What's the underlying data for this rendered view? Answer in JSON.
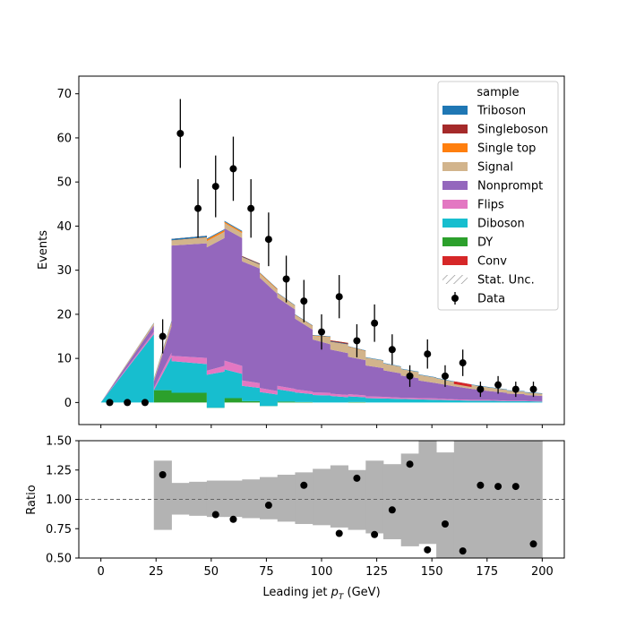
{
  "chart_data": [
    {
      "type": "stacked-area",
      "ylabel": "Events",
      "xlim": [
        -10,
        210
      ],
      "ylim": [
        -5,
        74
      ],
      "yticks": [
        0,
        10,
        20,
        30,
        40,
        50,
        60,
        70
      ],
      "legend": {
        "title": "sample",
        "placement": "top-right",
        "entries": [
          {
            "name": "Triboson",
            "color": "#1f77b4",
            "kind": "patch"
          },
          {
            "name": "Singleboson",
            "color": "#a52a2a",
            "kind": "patch"
          },
          {
            "name": "Single top",
            "color": "#ff7f0e",
            "kind": "patch"
          },
          {
            "name": "Signal",
            "color": "#d2b48c",
            "kind": "patch"
          },
          {
            "name": "Nonprompt",
            "color": "#9467bd",
            "kind": "patch"
          },
          {
            "name": "Flips",
            "color": "#e377c2",
            "kind": "patch"
          },
          {
            "name": "Diboson",
            "color": "#17becf",
            "kind": "patch"
          },
          {
            "name": "DY",
            "color": "#2ca02c",
            "kind": "patch"
          },
          {
            "name": "Conv",
            "color": "#d62728",
            "kind": "patch"
          },
          {
            "name": "Stat. Unc.",
            "color": "#888888",
            "kind": "hatch"
          },
          {
            "name": "Data",
            "color": "#000000",
            "kind": "errorbar"
          }
        ]
      },
      "stack_x": [
        0,
        24,
        24,
        32,
        32,
        48,
        48,
        56,
        56,
        64,
        64,
        72,
        72,
        80,
        80,
        88,
        88,
        96,
        96,
        104,
        104,
        112,
        112,
        120,
        120,
        128,
        128,
        136,
        136,
        144,
        144,
        152,
        152,
        160,
        160,
        168,
        168,
        176,
        176,
        184,
        184,
        192,
        192,
        200
      ],
      "series": [
        {
          "name": "DY",
          "color": "#2ca02c",
          "values": [
            0,
            0,
            2.8,
            2.8,
            2.2,
            2.2,
            -1.2,
            -1.2,
            1.0,
            1.0,
            0.3,
            0.3,
            -0.8,
            -0.8,
            0.2,
            0.2,
            0.1,
            0.1,
            0,
            0,
            0,
            0,
            0.1,
            0.1,
            0,
            0,
            0,
            0,
            0,
            0,
            0,
            0,
            0,
            0,
            0,
            0,
            0,
            0,
            0,
            0,
            0,
            0,
            0,
            0
          ]
        },
        {
          "name": "Diboson",
          "color": "#17becf",
          "values": [
            0,
            15.5,
            0,
            7.5,
            7.2,
            6.5,
            7.5,
            8.2,
            6.5,
            5.5,
            3.5,
            3.0,
            3.2,
            2.6,
            2.8,
            2.2,
            2.2,
            1.8,
            1.7,
            1.6,
            1.5,
            1.2,
            1.3,
            1.1,
            1.0,
            0.9,
            0.9,
            0.8,
            0.8,
            0.7,
            0.7,
            0.6,
            0.6,
            0.5,
            0.5,
            0.4,
            0.4,
            0.4,
            0.4,
            0.3,
            0.3,
            0.3,
            0.3,
            0.2
          ]
        },
        {
          "name": "Flips",
          "color": "#e377c2",
          "values": [
            0,
            0.5,
            0.5,
            1.0,
            1.2,
            1.4,
            0.9,
            1.3,
            2.0,
            1.8,
            1.2,
            1.1,
            0.9,
            0.8,
            0.8,
            0.7,
            0.7,
            0.6,
            0.6,
            0.6,
            0.5,
            0.5,
            0.5,
            0.4,
            0.4,
            0.4,
            0.4,
            0.3,
            0.3,
            0.3,
            0.3,
            0.3,
            0.3,
            0.2,
            0.2,
            0.2,
            0.2,
            0.2,
            0.2,
            0.1,
            0.1,
            0.1,
            0.1,
            0.1
          ]
        },
        {
          "name": "Nonprompt",
          "color": "#9467bd",
          "values": [
            0,
            1.5,
            1.5,
            6.0,
            25,
            26,
            28,
            29,
            30,
            29,
            27,
            26,
            25,
            22,
            20,
            18,
            16,
            14,
            12,
            11,
            10,
            9.5,
            8.5,
            8.0,
            7.0,
            6.5,
            6.0,
            5.5,
            5.0,
            4.5,
            4.0,
            3.5,
            3.5,
            3.0,
            3.0,
            2.5,
            2.5,
            2.0,
            2.0,
            1.8,
            1.6,
            1.5,
            1.3,
            1.2
          ]
        },
        {
          "name": "Signal",
          "color": "#d2b48c",
          "values": [
            0,
            0.4,
            0.4,
            0.8,
            1.2,
            1.3,
            1.4,
            1.4,
            1.2,
            1.1,
            1.0,
            0.9,
            0.9,
            0.9,
            0.9,
            0.8,
            0.8,
            0.8,
            0.8,
            1.6,
            2.0,
            2.2,
            2.2,
            2.0,
            1.8,
            1.7,
            1.6,
            1.5,
            1.5,
            1.4,
            1.3,
            1.2,
            1.1,
            1.0,
            1.0,
            0.9,
            0.9,
            0.8,
            0.8,
            0.7,
            0.7,
            0.6,
            0.6,
            0.5
          ]
        },
        {
          "name": "Single top",
          "color": "#ff7f0e",
          "values": [
            0,
            0.1,
            0.1,
            0.2,
            0.3,
            0.4,
            0.4,
            0.4,
            0.3,
            0.3,
            0.2,
            0.2,
            0.2,
            0.2,
            0.1,
            0.1,
            0.1,
            0.1,
            0.1,
            0.1,
            0.1,
            0.1,
            0.1,
            0.1,
            0,
            0,
            0,
            0,
            0,
            0,
            0,
            0,
            0,
            0,
            0,
            0,
            0,
            0,
            0,
            0,
            0,
            0,
            0,
            0
          ]
        },
        {
          "name": "Singleboson",
          "color": "#a52a2a",
          "values": [
            0,
            0,
            0,
            0,
            -0.3,
            -0.3,
            0,
            0,
            0,
            0,
            -0.2,
            -0.2,
            0,
            0,
            0,
            0,
            0,
            0,
            0,
            0,
            -0.3,
            -0.3,
            0,
            0,
            0,
            0,
            0,
            0,
            0,
            0,
            0,
            0,
            0,
            0,
            0,
            0,
            0,
            0,
            0,
            0,
            0,
            0,
            0,
            0
          ]
        },
        {
          "name": "Triboson",
          "color": "#1f77b4",
          "values": [
            0,
            0.1,
            0.1,
            0.2,
            0.3,
            0.3,
            0.2,
            0.2,
            0.2,
            0.2,
            0.1,
            0.1,
            0.1,
            0.1,
            0.1,
            0.1,
            0.1,
            0.1,
            0.1,
            0.1,
            0.1,
            0.1,
            0.1,
            0.1,
            0.1,
            0.1,
            0.1,
            0.1,
            0.1,
            0.1,
            0.1,
            0.1,
            0.1,
            0.1,
            0.1,
            0.1,
            0.1,
            0.1,
            0.1,
            0.1,
            0.1,
            0.1,
            0.1,
            0.1
          ]
        },
        {
          "name": "Conv",
          "color": "#d62728",
          "values": [
            0,
            0,
            0,
            0,
            0,
            0,
            0,
            0,
            0,
            0,
            0,
            0,
            0,
            0,
            0,
            0,
            0,
            0,
            0,
            0,
            0,
            0,
            0,
            0,
            0,
            0,
            0,
            0,
            0,
            0,
            0,
            0,
            0,
            0,
            -0.6,
            -0.6,
            0,
            0,
            0,
            0,
            0,
            0,
            0,
            0
          ]
        }
      ],
      "data": {
        "name": "Data",
        "x": [
          4,
          12,
          20,
          28,
          36,
          44,
          52,
          60,
          68,
          76,
          84,
          92,
          100,
          108,
          116,
          124,
          132,
          140,
          148,
          156,
          164,
          172,
          180,
          188,
          196
        ],
        "y": [
          0,
          0,
          0,
          15,
          61,
          44,
          49,
          53,
          44,
          37,
          28,
          23,
          16,
          24,
          14,
          18,
          12,
          6,
          11,
          6,
          9,
          3,
          4,
          3,
          3
        ]
      }
    },
    {
      "type": "scatter",
      "xlabel": "Leading jet  p_T (GeV)",
      "xlabel_main": "Leading jet ",
      "xlabel_symbol": "p",
      "xlabel_sub": "T",
      "xlabel_unit": " (GeV)",
      "ylabel": "Ratio",
      "xlim": [
        -10,
        210
      ],
      "ylim": [
        0.5,
        1.5
      ],
      "xticks": [
        0,
        25,
        50,
        75,
        100,
        125,
        150,
        175,
        200
      ],
      "yticks": [
        "0.50",
        "0.75",
        "1.00",
        "1.25",
        "1.50"
      ],
      "reference_line": 1.0,
      "uncertainty_band": {
        "edges": [
          24,
          32,
          40,
          48,
          56,
          64,
          72,
          80,
          88,
          96,
          104,
          112,
          120,
          128,
          136,
          144,
          152,
          160,
          168,
          176,
          184,
          192,
          200
        ],
        "low": [
          0.74,
          0.87,
          0.86,
          0.85,
          0.85,
          0.84,
          0.83,
          0.81,
          0.79,
          0.78,
          0.76,
          0.74,
          0.71,
          0.66,
          0.6,
          0.62,
          0.5,
          0.5,
          0.5,
          0.5,
          0.5,
          0.5
        ],
        "high": [
          1.33,
          1.14,
          1.15,
          1.16,
          1.16,
          1.17,
          1.19,
          1.21,
          1.23,
          1.26,
          1.29,
          1.25,
          1.33,
          1.3,
          1.39,
          1.5,
          1.4,
          1.5,
          1.5,
          1.5,
          1.5,
          1.5
        ],
        "color": "#b3b3b3"
      },
      "points": {
        "x": [
          28,
          52,
          60,
          76,
          92,
          108,
          116,
          124,
          132,
          140,
          148,
          156,
          164,
          172,
          180,
          188,
          196
        ],
        "y": [
          1.21,
          0.87,
          0.83,
          0.95,
          1.12,
          0.71,
          1.18,
          0.7,
          0.91,
          1.3,
          0.57,
          0.79,
          0.56,
          1.12,
          1.11,
          1.11,
          0.62
        ]
      }
    }
  ]
}
